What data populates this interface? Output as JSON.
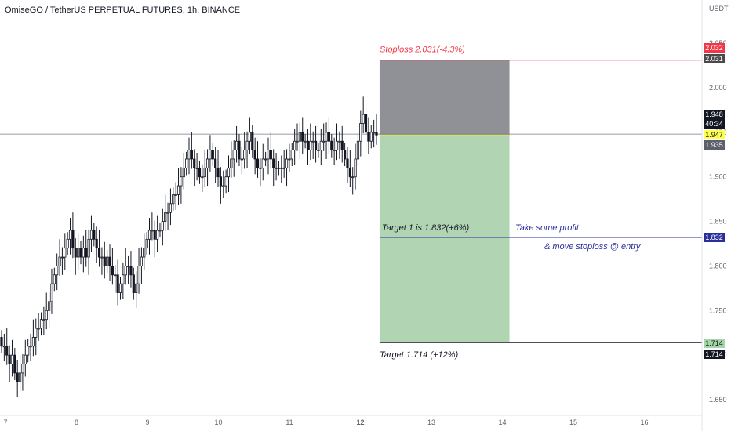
{
  "header": {
    "title": "OmiseGO / TetherUS PERPETUAL FUTURES, 1h, BINANCE",
    "unit": "USDT"
  },
  "colors": {
    "stop_zone": "#8f9196",
    "target_zone": "#b1d4b3",
    "stop_line": "#f23645",
    "target_line": "#2a2e9c",
    "price_line": "#787b86",
    "candle": "#131722",
    "red_tag": "#f23645",
    "yellow_tag": "#ffff50",
    "green_tag": "#a5d6a7"
  },
  "tags": {
    "stop_red": "2.032",
    "stop_grey": "2.031",
    "price": "1.948",
    "countdown": "40:34",
    "entry": "1.947",
    "entry_grey": "1.935",
    "target1": "1.832",
    "target2_green": "1.714",
    "target2_black": "1.714"
  },
  "annotations": {
    "stoploss": "Stoploss 2.031(-4.3%)",
    "target1": "Target 1 is 1.832(+6%)",
    "take_profit": "Take some profit",
    "move_stop": "& move stoploss @ entry",
    "target2": "Target 1.714 (+12%)"
  },
  "chart_data": {
    "type": "candlestick",
    "title": "OmiseGO / TetherUS PERPETUAL FUTURES, 1h, BINANCE",
    "xlabel": "",
    "ylabel": "USDT",
    "ylim": [
      1.64,
      2.07
    ],
    "y_ticks": [
      "2.050",
      "2.000",
      "1.950",
      "1.900",
      "1.850",
      "1.800",
      "1.750",
      "1.700",
      "1.650"
    ],
    "x_ticks": [
      "7",
      "8",
      "9",
      "10",
      "11",
      "12",
      "13",
      "14",
      "15",
      "16"
    ],
    "trade": {
      "entry": 1.947,
      "stoploss": 2.031,
      "target1": 1.832,
      "target2": 1.714,
      "from_day": 12.27,
      "to_day": 14.1
    },
    "ohlc_closes": [
      1.71,
      1.71,
      1.7,
      1.69,
      1.7,
      1.68,
      1.67,
      1.68,
      1.69,
      1.7,
      1.71,
      1.71,
      1.72,
      1.73,
      1.73,
      1.74,
      1.74,
      1.75,
      1.76,
      1.78,
      1.79,
      1.8,
      1.81,
      1.81,
      1.82,
      1.83,
      1.84,
      1.82,
      1.81,
      1.82,
      1.81,
      1.82,
      1.81,
      1.83,
      1.84,
      1.83,
      1.82,
      1.81,
      1.81,
      1.8,
      1.81,
      1.8,
      1.79,
      1.79,
      1.77,
      1.78,
      1.79,
      1.8,
      1.8,
      1.79,
      1.77,
      1.78,
      1.8,
      1.81,
      1.82,
      1.83,
      1.84,
      1.84,
      1.83,
      1.84,
      1.84,
      1.85,
      1.86,
      1.86,
      1.87,
      1.88,
      1.88,
      1.89,
      1.9,
      1.91,
      1.92,
      1.93,
      1.92,
      1.91,
      1.91,
      1.9,
      1.9,
      1.91,
      1.92,
      1.93,
      1.92,
      1.91,
      1.9,
      1.89,
      1.89,
      1.9,
      1.91,
      1.92,
      1.93,
      1.94,
      1.92,
      1.92,
      1.93,
      1.94,
      1.95,
      1.93,
      1.92,
      1.91,
      1.91,
      1.92,
      1.92,
      1.93,
      1.92,
      1.91,
      1.91,
      1.91,
      1.91,
      1.91,
      1.92,
      1.92,
      1.93,
      1.94,
      1.94,
      1.95,
      1.94,
      1.94,
      1.93,
      1.94,
      1.94,
      1.93,
      1.93,
      1.94,
      1.94,
      1.95,
      1.94,
      1.93,
      1.93,
      1.94,
      1.94,
      1.93,
      1.92,
      1.91,
      1.9,
      1.9,
      1.92,
      1.94,
      1.96,
      1.97,
      1.95,
      1.94,
      1.95,
      1.95,
      1.947
    ]
  }
}
